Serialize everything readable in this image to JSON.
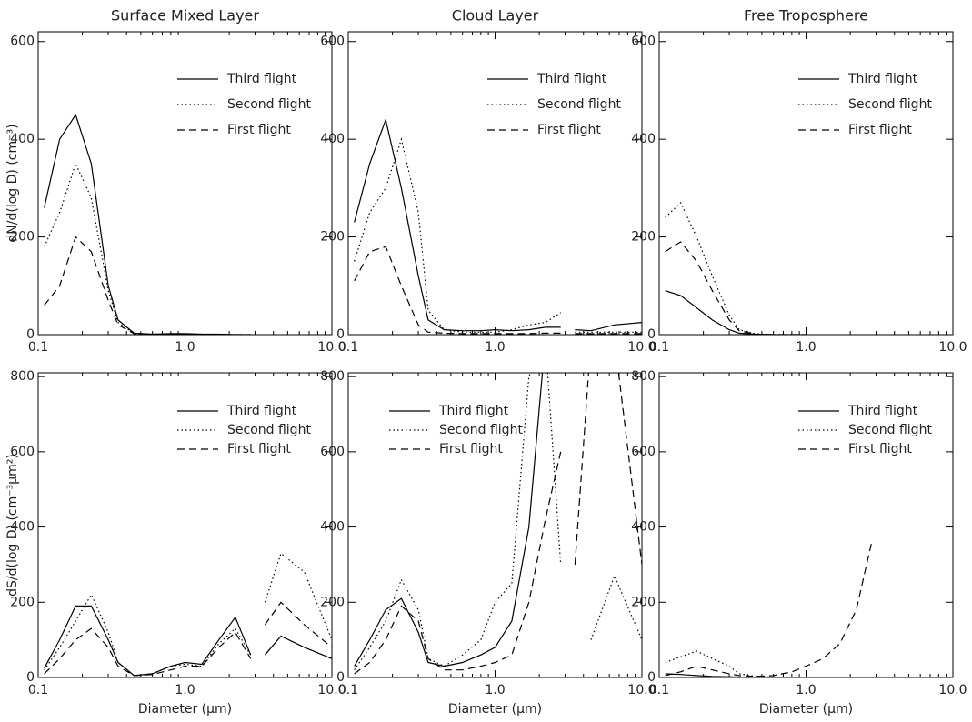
{
  "chart_data": [
    {
      "type": "line",
      "title": "Surface Mixed Layer",
      "y_label": "dN/d(log D) (cm⁻³)",
      "log_x": true,
      "legend": "upper right",
      "xlim": [
        0.1,
        10
      ],
      "xticks": [
        0.1,
        {
          "value": 1,
          "label": "1.0"
        },
        {
          "value": 10,
          "label": "10.0"
        }
      ],
      "ylim": [
        0,
        620
      ],
      "yticks": [
        0,
        200,
        400,
        600
      ],
      "x": [
        0.11,
        0.14,
        0.18,
        0.23,
        0.3,
        0.35,
        0.45,
        0.6,
        0.8,
        1.0,
        1.3,
        1.7,
        2.2,
        2.8,
        3.1,
        3.5,
        4.5,
        6.5,
        10
      ],
      "series": [
        {
          "name": "Third flight",
          "color": "#000000",
          "dash": "solid",
          "values": [
            260,
            400,
            450,
            350,
            100,
            30,
            3,
            1,
            2,
            2,
            1,
            1,
            0,
            0,
            null,
            null,
            null,
            null,
            null
          ]
        },
        {
          "name": "Second flight",
          "color": "#000000",
          "dash": "dotted",
          "values": [
            180,
            250,
            350,
            280,
            90,
            25,
            2,
            1,
            1,
            1,
            1,
            0,
            0,
            0,
            null,
            null,
            null,
            null,
            null
          ]
        },
        {
          "name": "First flight",
          "color": "#000000",
          "dash": "dashed",
          "values": [
            60,
            100,
            200,
            170,
            70,
            20,
            2,
            1,
            1,
            1,
            0,
            0,
            0,
            0,
            null,
            null,
            null,
            null,
            null
          ]
        }
      ]
    },
    {
      "type": "line",
      "title": "Cloud Layer",
      "log_x": true,
      "legend": "upper right",
      "xlim": [
        0.1,
        10
      ],
      "xticks": [
        0.1,
        {
          "value": 1,
          "label": "1.0"
        },
        {
          "value": 10,
          "label": "10.0"
        }
      ],
      "ylim": [
        0,
        620
      ],
      "yticks": [
        0,
        200,
        400,
        600
      ],
      "x": [
        0.11,
        0.14,
        0.18,
        0.23,
        0.3,
        0.35,
        0.45,
        0.6,
        0.8,
        1.0,
        1.3,
        1.7,
        2.2,
        2.8,
        3.1,
        3.5,
        4.5,
        6.5,
        10
      ],
      "series": [
        {
          "name": "Third flight",
          "color": "#000000",
          "dash": "solid",
          "values": [
            230,
            350,
            440,
            300,
            120,
            30,
            10,
            8,
            8,
            10,
            8,
            10,
            15,
            15,
            null,
            10,
            8,
            20,
            25
          ]
        },
        {
          "name": "Second flight",
          "color": "#000000",
          "dash": "dotted",
          "values": [
            150,
            250,
            300,
            400,
            250,
            50,
            10,
            5,
            5,
            5,
            10,
            20,
            25,
            45,
            null,
            5,
            5,
            5,
            5
          ]
        },
        {
          "name": "First flight",
          "color": "#000000",
          "dash": "dashed",
          "values": [
            110,
            170,
            180,
            100,
            20,
            5,
            3,
            2,
            2,
            2,
            2,
            2,
            3,
            3,
            null,
            2,
            2,
            2,
            2
          ]
        }
      ]
    },
    {
      "type": "line",
      "title": "Free Troposphere",
      "log_x": true,
      "legend": "upper right",
      "xlim": [
        0.1,
        10
      ],
      "xticks": [
        0.1,
        {
          "value": 1,
          "label": "1.0"
        },
        {
          "value": 10,
          "label": "10.0"
        }
      ],
      "ylim": [
        0,
        620
      ],
      "yticks": [
        0,
        200,
        400,
        600
      ],
      "x": [
        0.11,
        0.14,
        0.18,
        0.23,
        0.3,
        0.35,
        0.45,
        0.6,
        0.8,
        1.0
      ],
      "series": [
        {
          "name": "Third flight",
          "color": "#000000",
          "dash": "solid",
          "values": [
            90,
            80,
            55,
            30,
            10,
            3,
            1,
            0,
            0,
            0
          ]
        },
        {
          "name": "Second flight",
          "color": "#000000",
          "dash": "dotted",
          "values": [
            240,
            270,
            200,
            120,
            40,
            10,
            2,
            0,
            0,
            0
          ]
        },
        {
          "name": "First flight",
          "color": "#000000",
          "dash": "dashed",
          "values": [
            170,
            190,
            150,
            90,
            30,
            8,
            1,
            0,
            0,
            0
          ]
        }
      ]
    },
    {
      "type": "line",
      "y_label": "dS/d(log D) (cm⁻³µm²)",
      "x_label": "Diameter (µm)",
      "log_x": true,
      "legend": "upper right",
      "xlim": [
        0.1,
        10
      ],
      "xticks": [
        0.1,
        {
          "value": 1,
          "label": "1.0"
        },
        {
          "value": 10,
          "label": "10.0"
        }
      ],
      "ylim": [
        0,
        810
      ],
      "yticks": [
        0,
        200,
        400,
        600,
        800
      ],
      "x": [
        0.11,
        0.14,
        0.18,
        0.23,
        0.3,
        0.35,
        0.45,
        0.6,
        0.8,
        1.0,
        1.3,
        1.7,
        2.2,
        2.8,
        3.1,
        3.5,
        4.5,
        6.5,
        10
      ],
      "series": [
        {
          "name": "Third flight",
          "color": "#000000",
          "dash": "solid",
          "values": [
            25,
            100,
            190,
            190,
            100,
            40,
            5,
            10,
            30,
            40,
            35,
            100,
            160,
            60,
            null,
            60,
            110,
            80,
            50
          ]
        },
        {
          "name": "Second flight",
          "color": "#000000",
          "dash": "dotted",
          "values": [
            20,
            80,
            150,
            220,
            120,
            40,
            5,
            10,
            30,
            35,
            30,
            90,
            130,
            60,
            null,
            200,
            330,
            280,
            100
          ]
        },
        {
          "name": "First flight",
          "color": "#000000",
          "dash": "dashed",
          "values": [
            10,
            50,
            100,
            130,
            80,
            30,
            5,
            8,
            20,
            30,
            30,
            80,
            120,
            50,
            null,
            140,
            200,
            140,
            80
          ]
        }
      ]
    },
    {
      "type": "line",
      "x_label": "Diameter (µm)",
      "log_x": true,
      "legend": "upper left",
      "xlim": [
        0.1,
        10
      ],
      "xticks": [
        0.1,
        {
          "value": 1,
          "label": "1.0"
        },
        {
          "value": 10,
          "label": "10.0"
        }
      ],
      "ylim": [
        0,
        810
      ],
      "yticks": [
        0,
        200,
        400,
        600,
        800
      ],
      "x": [
        0.11,
        0.14,
        0.18,
        0.23,
        0.3,
        0.35,
        0.45,
        0.6,
        0.8,
        1.0,
        1.3,
        1.7,
        2.2,
        2.8,
        3.1,
        3.5,
        4.5,
        6.5,
        10
      ],
      "series": [
        {
          "name": "Third flight",
          "color": "#000000",
          "dash": "solid",
          "values": [
            30,
            100,
            180,
            210,
            120,
            40,
            30,
            40,
            60,
            80,
            150,
            400,
            900,
            null,
            null,
            900,
            900,
            null,
            null
          ]
        },
        {
          "name": "Second flight",
          "color": "#000000",
          "dash": "dotted",
          "values": [
            20,
            80,
            150,
            260,
            180,
            50,
            30,
            60,
            100,
            200,
            250,
            800,
            900,
            300,
            null,
            null,
            100,
            270,
            100
          ]
        },
        {
          "name": "First flight",
          "color": "#000000",
          "dash": "dashed",
          "values": [
            10,
            40,
            100,
            190,
            150,
            50,
            20,
            20,
            30,
            40,
            60,
            200,
            420,
            600,
            null,
            300,
            900,
            900,
            300
          ]
        }
      ]
    },
    {
      "type": "line",
      "x_label": "Diameter (µm)",
      "log_x": true,
      "legend": "upper right",
      "xlim": [
        0.1,
        10
      ],
      "xticks": [
        0.1,
        {
          "value": 1,
          "label": "1.0"
        },
        {
          "value": 10,
          "label": "10.0"
        }
      ],
      "ylim": [
        0,
        810
      ],
      "yticks": [
        0,
        200,
        400,
        600,
        800
      ],
      "x": [
        0.11,
        0.14,
        0.18,
        0.23,
        0.3,
        0.35,
        0.45,
        0.6,
        0.8,
        1.0,
        1.3,
        1.7,
        2.2,
        2.8
      ],
      "series": [
        {
          "name": "Third flight",
          "color": "#000000",
          "dash": "solid",
          "values": [
            10,
            8,
            5,
            3,
            2,
            1,
            0,
            0,
            0,
            0,
            0,
            0,
            0,
            0
          ]
        },
        {
          "name": "Second flight",
          "color": "#000000",
          "dash": "dotted",
          "values": [
            40,
            55,
            70,
            50,
            30,
            10,
            3,
            1,
            0,
            0,
            0,
            0,
            0,
            null
          ]
        },
        {
          "name": "First flight",
          "color": "#000000",
          "dash": "dashed",
          "values": [
            5,
            15,
            30,
            20,
            10,
            5,
            3,
            5,
            15,
            30,
            50,
            90,
            180,
            360
          ]
        }
      ]
    }
  ]
}
